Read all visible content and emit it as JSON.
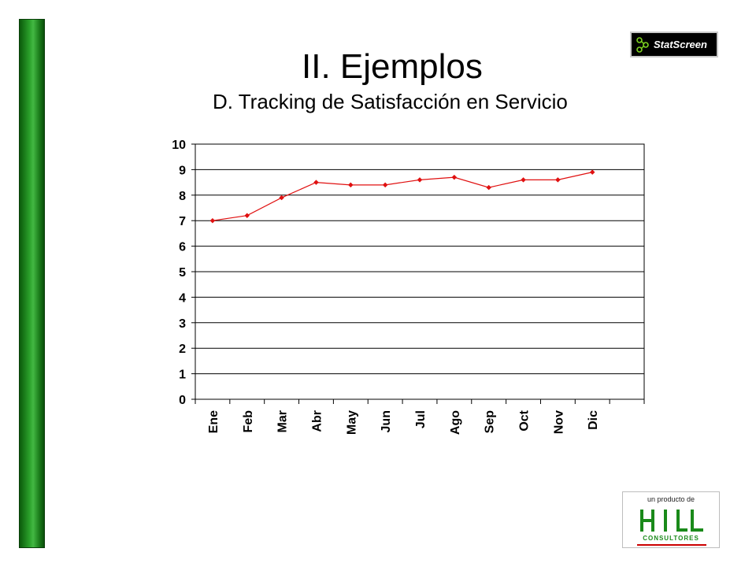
{
  "slide": {
    "title": "II. Ejemplos",
    "subtitle": "D. Tracking de Satisfacción en Servicio",
    "brand_logo_text": "StatScreen",
    "footer_caption": "un producto de",
    "footer_logo_text": "HILL",
    "footer_logo_subtext": "CONSULTORES"
  },
  "colors": {
    "accent_green": "#2aa02a",
    "series_red": "#e01010"
  },
  "chart_data": {
    "type": "line",
    "title": "",
    "xlabel": "",
    "ylabel": "",
    "categories": [
      "Ene",
      "Feb",
      "Mar",
      "Abr",
      "May",
      "Jun",
      "Jul",
      "Ago",
      "Sep",
      "Oct",
      "Nov",
      "Dic"
    ],
    "series": [
      {
        "values": [
          7.0,
          7.2,
          7.9,
          8.5,
          8.4,
          8.4,
          8.6,
          8.7,
          8.3,
          8.6,
          8.6,
          8.9
        ]
      }
    ],
    "ylim": [
      0,
      10
    ],
    "yticks": [
      0,
      1,
      2,
      3,
      4,
      5,
      6,
      7,
      8,
      9,
      10
    ],
    "grid": "horizontal",
    "legend": "none"
  }
}
